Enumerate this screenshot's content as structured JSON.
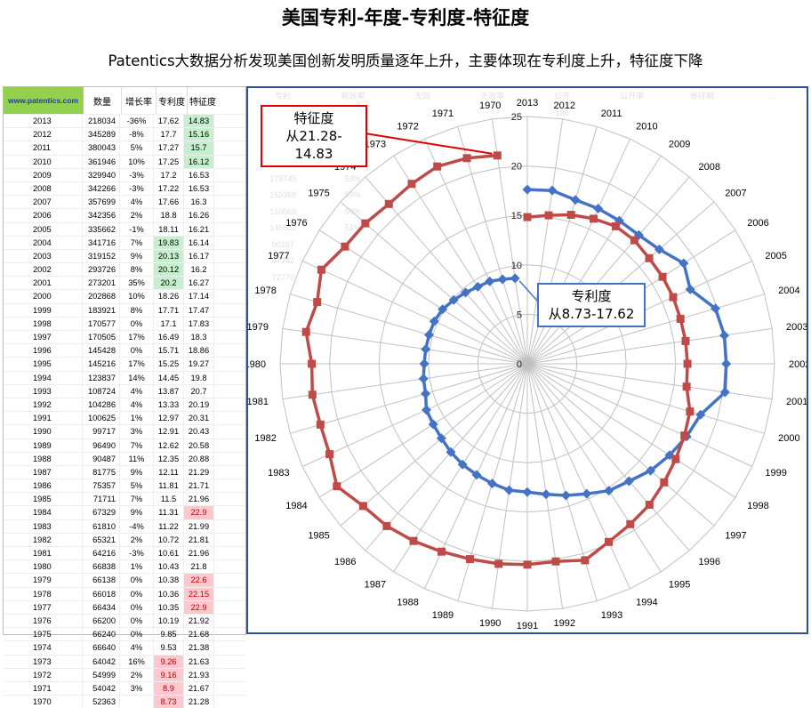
{
  "title": "美国专利-年度-专利度-特征度",
  "subtitle": "Patentics大数据分析发现美国创新发明质量逐年上升，主要体现在专利度上升，特征度下降",
  "table": {
    "site_label": "www.patentics.com",
    "headers": [
      "数量",
      "增长率",
      "专利度",
      "特征度"
    ],
    "rows": [
      {
        "year": "2013",
        "count": "218034",
        "growth": "-36%",
        "zl": "17.62",
        "tz": "14.83",
        "tz_hl": "green"
      },
      {
        "year": "2012",
        "count": "345289",
        "growth": "-8%",
        "zl": "17.7",
        "tz": "15.16",
        "tz_hl": "green"
      },
      {
        "year": "2011",
        "count": "380043",
        "growth": "5%",
        "zl": "17.27",
        "tz": "15.7",
        "tz_hl": "green"
      },
      {
        "year": "2010",
        "count": "361946",
        "growth": "10%",
        "zl": "17.25",
        "tz": "16.12",
        "tz_hl": "green"
      },
      {
        "year": "2009",
        "count": "329940",
        "growth": "-3%",
        "zl": "17.2",
        "tz": "16.53"
      },
      {
        "year": "2008",
        "count": "342266",
        "growth": "-3%",
        "zl": "17.22",
        "tz": "16.53"
      },
      {
        "year": "2007",
        "count": "357699",
        "growth": "4%",
        "zl": "17.66",
        "tz": "16.3"
      },
      {
        "year": "2006",
        "count": "342356",
        "growth": "2%",
        "zl": "18.8",
        "tz": "16.26"
      },
      {
        "year": "2005",
        "count": "335662",
        "growth": "-1%",
        "zl": "18.11",
        "tz": "16.21"
      },
      {
        "year": "2004",
        "count": "341716",
        "growth": "7%",
        "zl": "19.83",
        "tz": "16.14",
        "zl_hl": "green"
      },
      {
        "year": "2003",
        "count": "319152",
        "growth": "9%",
        "zl": "20.13",
        "tz": "16.17",
        "zl_hl": "green"
      },
      {
        "year": "2002",
        "count": "293726",
        "growth": "8%",
        "zl": "20.12",
        "tz": "16.2",
        "zl_hl": "green"
      },
      {
        "year": "2001",
        "count": "273201",
        "growth": "35%",
        "zl": "20.2",
        "tz": "16.27",
        "zl_hl": "green"
      },
      {
        "year": "2000",
        "count": "202868",
        "growth": "10%",
        "zl": "18.26",
        "tz": "17.14"
      },
      {
        "year": "1999",
        "count": "183921",
        "growth": "8%",
        "zl": "17.71",
        "tz": "17.47"
      },
      {
        "year": "1998",
        "count": "170577",
        "growth": "0%",
        "zl": "17.1",
        "tz": "17.83"
      },
      {
        "year": "1997",
        "count": "170505",
        "growth": "17%",
        "zl": "16.49",
        "tz": "18.3"
      },
      {
        "year": "1996",
        "count": "145428",
        "growth": "0%",
        "zl": "15.71",
        "tz": "18.86"
      },
      {
        "year": "1995",
        "count": "145216",
        "growth": "17%",
        "zl": "15.25",
        "tz": "19.27"
      },
      {
        "year": "1994",
        "count": "123837",
        "growth": "14%",
        "zl": "14.45",
        "tz": "19.8"
      },
      {
        "year": "1993",
        "count": "108724",
        "growth": "4%",
        "zl": "13.87",
        "tz": "20.7"
      },
      {
        "year": "1992",
        "count": "104286",
        "growth": "4%",
        "zl": "13.33",
        "tz": "20.19"
      },
      {
        "year": "1991",
        "count": "100625",
        "growth": "1%",
        "zl": "12.97",
        "tz": "20.31"
      },
      {
        "year": "1990",
        "count": "99717",
        "growth": "3%",
        "zl": "12.91",
        "tz": "20.43"
      },
      {
        "year": "1989",
        "count": "96490",
        "growth": "7%",
        "zl": "12.62",
        "tz": "20.58"
      },
      {
        "year": "1988",
        "count": "90487",
        "growth": "11%",
        "zl": "12.35",
        "tz": "20.88"
      },
      {
        "year": "1987",
        "count": "81775",
        "growth": "9%",
        "zl": "12.11",
        "tz": "21.29"
      },
      {
        "year": "1986",
        "count": "75357",
        "growth": "5%",
        "zl": "11.81",
        "tz": "21.71"
      },
      {
        "year": "1985",
        "count": "71711",
        "growth": "7%",
        "zl": "11.5",
        "tz": "21.96"
      },
      {
        "year": "1984",
        "count": "67329",
        "growth": "9%",
        "zl": "11.31",
        "tz": "22.9",
        "tz_hl": "red"
      },
      {
        "year": "1983",
        "count": "61810",
        "growth": "-4%",
        "zl": "11.22",
        "tz": "21.99"
      },
      {
        "year": "1982",
        "count": "65321",
        "growth": "2%",
        "zl": "10.72",
        "tz": "21.81"
      },
      {
        "year": "1981",
        "count": "64216",
        "growth": "-3%",
        "zl": "10.61",
        "tz": "21.96"
      },
      {
        "year": "1980",
        "count": "66838",
        "growth": "1%",
        "zl": "10.43",
        "tz": "21.8"
      },
      {
        "year": "1979",
        "count": "66138",
        "growth": "0%",
        "zl": "10.38",
        "tz": "22.6",
        "tz_hl": "red"
      },
      {
        "year": "1978",
        "count": "66018",
        "growth": "0%",
        "zl": "10.36",
        "tz": "22.15",
        "tz_hl": "red"
      },
      {
        "year": "1977",
        "count": "66434",
        "growth": "0%",
        "zl": "10.35",
        "tz": "22.9",
        "tz_hl": "red"
      },
      {
        "year": "1976",
        "count": "66200",
        "growth": "0%",
        "zl": "10.19",
        "tz": "21.92"
      },
      {
        "year": "1975",
        "count": "66240",
        "growth": "0%",
        "zl": "9.85",
        "tz": "21.68"
      },
      {
        "year": "1974",
        "count": "66640",
        "growth": "4%",
        "zl": "9.53",
        "tz": "21.38"
      },
      {
        "year": "1973",
        "count": "64042",
        "growth": "16%",
        "zl": "9.26",
        "tz": "21.63",
        "zl_hl": "red"
      },
      {
        "year": "1972",
        "count": "54999",
        "growth": "2%",
        "zl": "9.16",
        "tz": "21.93",
        "zl_hl": "red"
      },
      {
        "year": "1971",
        "count": "54042",
        "growth": "3%",
        "zl": "8.9",
        "tz": "21.67",
        "zl_hl": "red"
      },
      {
        "year": "1970",
        "count": "52363",
        "growth": "",
        "zl": "8.73",
        "tz": "21.28",
        "zl_hl": "red"
      }
    ]
  },
  "chart_data": {
    "type": "radar",
    "categories": [
      "2013",
      "2012",
      "2011",
      "2010",
      "2009",
      "2008",
      "2007",
      "2006",
      "2005",
      "2004",
      "2003",
      "2002",
      "2001",
      "2000",
      "1999",
      "1998",
      "1997",
      "1996",
      "1995",
      "1994",
      "1993",
      "1992",
      "1991",
      "1990",
      "1989",
      "1988",
      "1987",
      "1986",
      "1985",
      "1984",
      "1983",
      "1982",
      "1981",
      "1980",
      "1979",
      "1978",
      "1977",
      "1976",
      "1975",
      "1974",
      "1973",
      "1972",
      "1971",
      "1970"
    ],
    "series": [
      {
        "key": "zl",
        "color": "#4472c4",
        "values": [
          17.62,
          17.7,
          17.27,
          17.25,
          17.2,
          17.22,
          17.66,
          18.8,
          18.11,
          19.83,
          20.13,
          20.12,
          20.2,
          18.26,
          17.71,
          17.1,
          16.49,
          15.71,
          15.25,
          14.45,
          13.87,
          13.33,
          12.97,
          12.91,
          12.62,
          12.35,
          12.11,
          11.81,
          11.5,
          11.31,
          11.22,
          10.72,
          10.61,
          10.43,
          10.38,
          10.36,
          10.35,
          10.19,
          9.85,
          9.53,
          9.26,
          9.16,
          8.9,
          8.73
        ]
      },
      {
        "key": "tz",
        "color": "#be4b48",
        "values": [
          14.83,
          15.16,
          15.7,
          16.12,
          16.53,
          16.53,
          16.3,
          16.26,
          16.21,
          16.14,
          16.17,
          16.2,
          16.27,
          17.14,
          17.47,
          17.83,
          18.3,
          18.86,
          19.27,
          19.8,
          20.7,
          20.19,
          20.31,
          20.43,
          20.58,
          20.88,
          21.29,
          21.71,
          21.96,
          22.9,
          21.99,
          21.81,
          21.96,
          21.8,
          22.6,
          22.15,
          22.9,
          21.92,
          21.68,
          21.38,
          21.63,
          21.93,
          21.67,
          21.28
        ]
      }
    ],
    "radial_ticks": [
      "0",
      "5",
      "10",
      "15",
      "20",
      "25"
    ],
    "rmax": 25,
    "colors": {
      "zl": "#4472c4",
      "tz": "#be4b48",
      "grid": "#c0c0c0"
    }
  },
  "callouts": {
    "tz": {
      "line1": "特征度",
      "line2": "从21.28-14.83",
      "color": "#e00000"
    },
    "zl": {
      "line1": "专利度",
      "line2": "从8.73-17.62",
      "color": "#4472c4"
    }
  },
  "background_faint": {
    "headers": [
      "专利",
      "有效率",
      "无效",
      "无效率",
      "公开",
      "公开率",
      "等待期",
      "..."
    ],
    "rows": [
      [
        "179226",
        "54%",
        "",
        "",
        "196",
        "",
        "",
        ""
      ],
      [
        "195335",
        "57%",
        "",
        "",
        "",
        "",
        "",
        ""
      ],
      [
        "195914",
        "55%",
        "",
        "",
        "",
        "",
        "",
        ""
      ],
      [
        "188308",
        "55%",
        "",
        "",
        "",
        "",
        "",
        ""
      ],
      [
        "179745",
        "53%",
        "",
        "",
        "",
        "",
        "",
        ""
      ],
      [
        "169368",
        "54%",
        "",
        "",
        "",
        "",
        "",
        ""
      ],
      [
        "159869",
        "50%",
        "",
        "",
        "",
        "",
        "",
        ""
      ],
      [
        "146553",
        "51%",
        "",
        "",
        "",
        "",
        "",
        ""
      ],
      [
        "90167",
        "",
        "",
        "",
        "",
        "",
        "",
        ""
      ],
      [
        "87942",
        "",
        "",
        "",
        "",
        "",
        "",
        ""
      ],
      [
        "72770",
        "",
        "",
        "",
        "",
        "",
        "",
        ""
      ]
    ]
  }
}
